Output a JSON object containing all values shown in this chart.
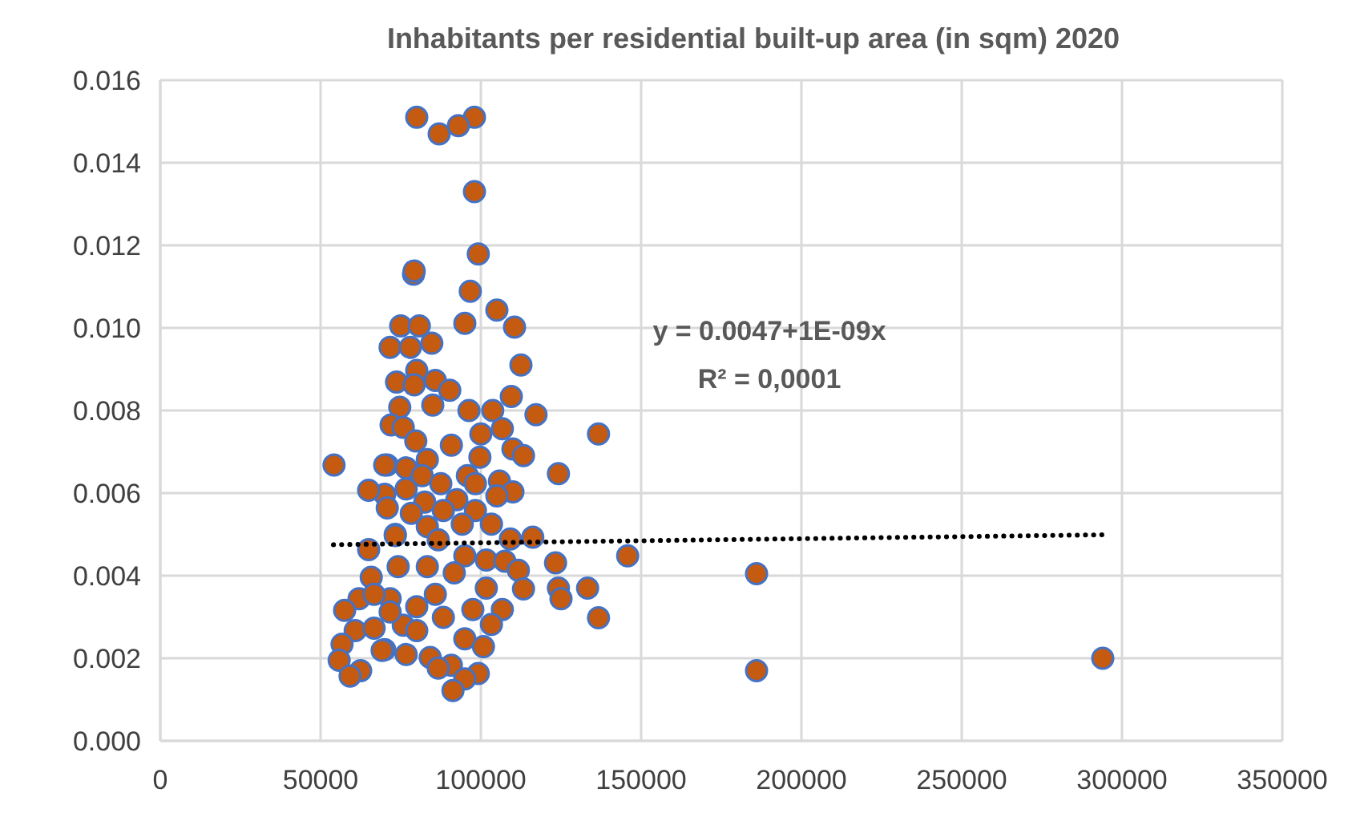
{
  "chart_data": {
    "type": "scatter",
    "title": "Inhabitants per residential built-up area (in sqm) 2020",
    "xlim": [
      0,
      350000
    ],
    "xticks": [
      0,
      50000,
      100000,
      150000,
      200000,
      250000,
      300000,
      350000
    ],
    "ylim": [
      0,
      0.016
    ],
    "yticks": [
      {
        "value": 0,
        "label": "0.000"
      },
      {
        "value": 0.002,
        "label": "0.002"
      },
      {
        "value": 0.004,
        "label": "0.004"
      },
      {
        "value": 0.006,
        "label": "0.006"
      },
      {
        "value": 0.008,
        "label": "0.008"
      },
      {
        "value": 0.01,
        "label": "0.010"
      },
      {
        "value": 0.012,
        "label": "0.012"
      },
      {
        "value": 0.014,
        "label": "0.014"
      },
      {
        "value": 0.016,
        "label": "0.016"
      }
    ],
    "grid": true,
    "annotations": [
      "y = 0.0047+1E-09x",
      "R² = 0,0001"
    ],
    "series": [
      {
        "color": "#c55a11",
        "marker": "circle",
        "x": [
          80000,
          98000,
          93000,
          87000,
          98000,
          79000,
          99200,
          79200,
          96700,
          105000,
          95000,
          110500,
          75000,
          80800,
          71700,
          78000,
          84700,
          112500,
          80000,
          73700,
          79200,
          85800,
          90300,
          109500,
          74700,
          85000,
          96300,
          103700,
          117200,
          136700,
          72000,
          75800,
          100000,
          106700,
          79700,
          90800,
          110000,
          113300,
          99700,
          83300,
          124200,
          70800,
          76700,
          81700,
          95800,
          105800,
          110000,
          87500,
          98300,
          70000,
          76700,
          82500,
          92500,
          105000,
          70800,
          78300,
          88300,
          98300,
          94200,
          103300,
          83300,
          73300,
          116200,
          109200,
          86700,
          145800,
          123300,
          74200,
          83300,
          95000,
          101700,
          107500,
          111700,
          91700,
          133300,
          124200,
          125000,
          113300,
          101700,
          85800,
          71700,
          80000,
          97500,
          106700,
          136700,
          75800,
          88300,
          103300,
          95000,
          70000,
          76700,
          84200,
          90800,
          99200,
          95000,
          91300,
          86700,
          100800,
          80000,
          54200,
          65000,
          70000,
          65000,
          73300,
          65800,
          62000,
          57500,
          71700,
          60800,
          66700,
          56700,
          55800,
          62500,
          59200,
          69200,
          66700,
          186000,
          186000,
          294000
        ],
        "values": [
          0.0151,
          0.0151,
          0.0149,
          0.0147,
          0.0133,
          0.0113,
          0.01179,
          0.01138,
          0.01089,
          0.01043,
          0.01011,
          0.01002,
          0.01005,
          0.01005,
          0.00953,
          0.00953,
          0.00963,
          0.0091,
          0.00897,
          0.00869,
          0.00862,
          0.00873,
          0.00849,
          0.00834,
          0.00808,
          0.00813,
          0.008,
          0.008,
          0.0079,
          0.00743,
          0.00765,
          0.00759,
          0.00743,
          0.00756,
          0.00726,
          0.00716,
          0.00707,
          0.00691,
          0.00687,
          0.00681,
          0.00647,
          0.00668,
          0.00661,
          0.00642,
          0.00642,
          0.00629,
          0.00603,
          0.00623,
          0.00623,
          0.00597,
          0.0061,
          0.00578,
          0.00584,
          0.00593,
          0.00564,
          0.00551,
          0.00558,
          0.00558,
          0.00525,
          0.00525,
          0.00519,
          0.005,
          0.00493,
          0.00489,
          0.00487,
          0.00448,
          0.00431,
          0.00422,
          0.00422,
          0.00448,
          0.00438,
          0.00435,
          0.00413,
          0.00407,
          0.0037,
          0.0037,
          0.00344,
          0.00368,
          0.0037,
          0.00355,
          0.00344,
          0.00325,
          0.00318,
          0.00318,
          0.00298,
          0.0028,
          0.00299,
          0.00282,
          0.00247,
          0.00221,
          0.00209,
          0.00202,
          0.00183,
          0.00163,
          0.0015,
          0.00122,
          0.00176,
          0.00228,
          0.00267,
          0.00668,
          0.00607,
          0.00668,
          0.00463,
          0.00497,
          0.00396,
          0.00344,
          0.00316,
          0.00312,
          0.00267,
          0.00273,
          0.00234,
          0.00195,
          0.0017,
          0.00157,
          0.00219,
          0.00355,
          0.00405,
          0.0017,
          0.002
        ]
      },
      {
        "type": "line",
        "color": "#000000",
        "line_style": "dotted",
        "x": [
          54000,
          294000
        ],
        "values": [
          0.00475,
          0.00499
        ]
      }
    ]
  }
}
